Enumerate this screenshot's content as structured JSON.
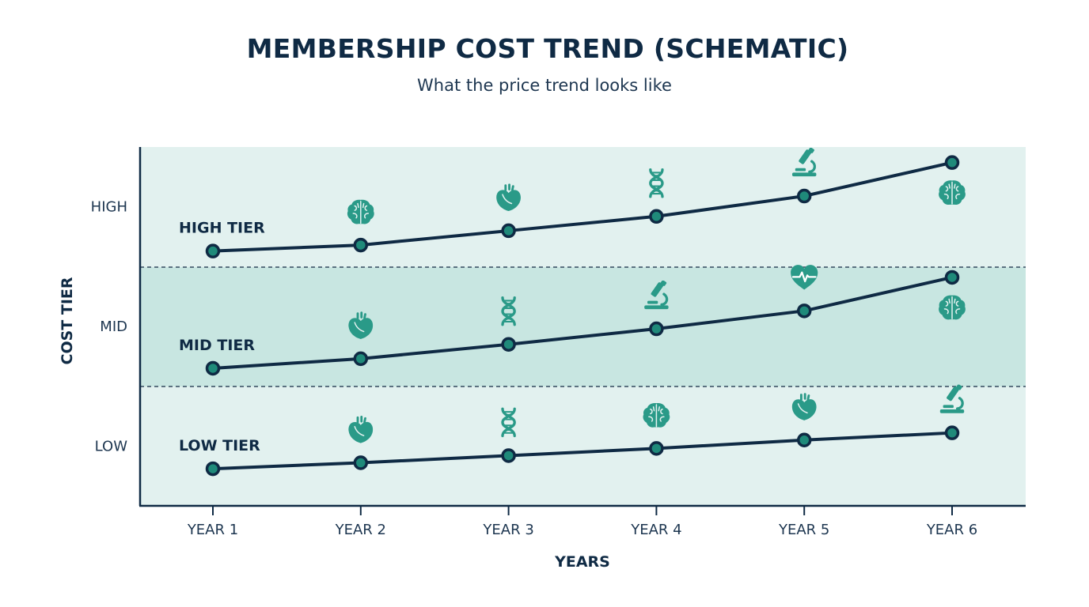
{
  "chart_data": {
    "type": "line",
    "title": "MEMBERSHIP COST TREND (SCHEMATIC)",
    "subtitle": "What the price trend looks like",
    "xlabel": "YEARS",
    "ylabel": "COST TIER",
    "categories": [
      "YEAR 1",
      "YEAR 2",
      "YEAR 3",
      "YEAR 4",
      "YEAR 5",
      "YEAR 6"
    ],
    "y_bands": [
      "LOW",
      "MID",
      "HIGH"
    ],
    "ylim": [
      0,
      3
    ],
    "grid": "dashed band dividers",
    "series": [
      {
        "name": "HIGH TIER",
        "values": [
          2.13,
          2.18,
          2.3,
          2.42,
          2.59,
          2.87
        ],
        "icons": [
          "",
          "brain-icon",
          "heart-icon",
          "dna-icon",
          "microscope-icon",
          "brain-icon"
        ],
        "icon_side": [
          "",
          "above",
          "above",
          "above",
          "above",
          "below"
        ]
      },
      {
        "name": "MID TIER",
        "values": [
          1.15,
          1.23,
          1.35,
          1.48,
          1.63,
          1.91
        ],
        "icons": [
          "",
          "heart-icon",
          "dna-icon",
          "microscope-icon",
          "heart-pulse-icon",
          "brain-icon"
        ],
        "icon_side": [
          "",
          "above",
          "above",
          "above",
          "above",
          "below"
        ]
      },
      {
        "name": "LOW TIER",
        "values": [
          0.31,
          0.36,
          0.42,
          0.48,
          0.55,
          0.61
        ],
        "icons": [
          "",
          "heart-icon",
          "dna-icon",
          "brain-icon",
          "heart-icon",
          "microscope-icon"
        ],
        "icon_side": [
          "",
          "above",
          "above",
          "above",
          "above",
          "above"
        ]
      }
    ],
    "colors": {
      "line": "#0f2a44",
      "marker_fill": "#1f8a7a",
      "icon": "#2a9a88",
      "band_outer": "#e2f1ef",
      "band_mid": "#c8e6e1",
      "text": "#0f2a44"
    }
  }
}
